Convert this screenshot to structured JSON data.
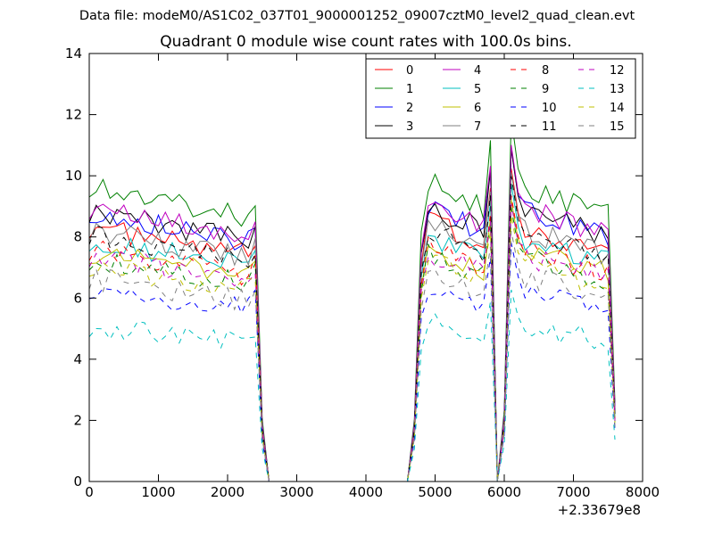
{
  "figure": {
    "suptitle": "Data file: modeM0/AS1C02_037T01_9000001252_09007cztM0_level2_quad_clean.evt",
    "x_offset_label": "+2.33679e8"
  },
  "chart_data": {
    "type": "line",
    "title": "Quadrant 0 module wise count rates with 100.0s bins.",
    "xlabel": "",
    "ylabel": "",
    "xlim": [
      0,
      8000
    ],
    "ylim": [
      0,
      14
    ],
    "x_ticks": [
      "0",
      "1000",
      "2000",
      "3000",
      "4000",
      "5000",
      "6000",
      "7000",
      "8000"
    ],
    "y_ticks": [
      "0",
      "2",
      "4",
      "6",
      "8",
      "10",
      "12",
      "14"
    ],
    "grid": false,
    "legend_position": "top-right",
    "x_segment_1": [
      0,
      100,
      200,
      300,
      400,
      500,
      600,
      700,
      800,
      900,
      1000,
      1100,
      1200,
      1300,
      1400,
      1500,
      1600,
      1700,
      1800,
      1900,
      2000,
      2100,
      2200,
      2300,
      2400,
      2500,
      2600
    ],
    "x_segment_2": [
      4700,
      4800,
      4900,
      5000,
      5100,
      5200,
      5300,
      5400,
      5500,
      5600,
      5700,
      5800,
      5900,
      6000,
      6100,
      6200,
      6300,
      6400,
      6500,
      6600,
      6700,
      6800,
      6900,
      7000,
      7100,
      7200,
      7300,
      7400,
      7500,
      7600
    ],
    "series": [
      {
        "name": "0",
        "color": "#ff0000",
        "dashed": false,
        "level": 8.0
      },
      {
        "name": "1",
        "color": "#008000",
        "dashed": false,
        "level": 9.3
      },
      {
        "name": "2",
        "color": "#0000ff",
        "dashed": false,
        "level": 8.5
      },
      {
        "name": "3",
        "color": "#000000",
        "dashed": false,
        "level": 8.5
      },
      {
        "name": "4",
        "color": "#bf00bf",
        "dashed": false,
        "level": 8.6
      },
      {
        "name": "5",
        "color": "#00bfbf",
        "dashed": false,
        "level": 7.6
      },
      {
        "name": "6",
        "color": "#bfbf00",
        "dashed": false,
        "level": 7.2
      },
      {
        "name": "7",
        "color": "#808080",
        "dashed": false,
        "level": 7.9
      },
      {
        "name": "8",
        "color": "#ff0000",
        "dashed": true,
        "level": 7.3
      },
      {
        "name": "9",
        "color": "#008000",
        "dashed": true,
        "level": 7.0
      },
      {
        "name": "10",
        "color": "#0000ff",
        "dashed": true,
        "level": 6.1
      },
      {
        "name": "11",
        "color": "#000000",
        "dashed": true,
        "level": 7.8
      },
      {
        "name": "12",
        "color": "#bf00bf",
        "dashed": true,
        "level": 7.1
      },
      {
        "name": "13",
        "color": "#00bfbf",
        "dashed": true,
        "level": 4.9
      },
      {
        "name": "14",
        "color": "#bfbf00",
        "dashed": true,
        "level": 6.8
      },
      {
        "name": "15",
        "color": "#808080",
        "dashed": true,
        "level": 6.4
      }
    ]
  }
}
